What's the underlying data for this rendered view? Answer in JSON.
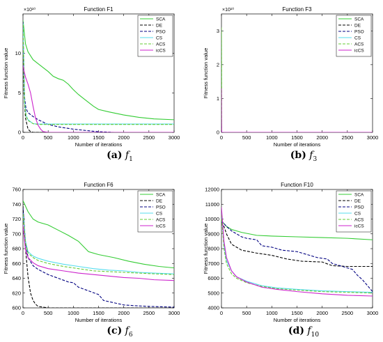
{
  "panels": [
    {
      "caption_tag": "(a)",
      "caption_symbol": "f",
      "caption_index": "1"
    },
    {
      "caption_tag": "(b)",
      "caption_symbol": "f",
      "caption_index": "3"
    },
    {
      "caption_tag": "(c)",
      "caption_symbol": "f",
      "caption_index": "6"
    },
    {
      "caption_tag": "(d)",
      "caption_symbol": "f",
      "caption_index": "10"
    }
  ],
  "legend_colors": {
    "SCA": "#33cc33",
    "DE": "#000000",
    "PSO": "#000080",
    "CS": "#55ddee",
    "ACS": "#66cc33",
    "icCS": "#cc22cc"
  },
  "chart_data": [
    {
      "type": "line",
      "title": "Function F1",
      "xlabel": "Number of iterations",
      "ylabel": "Fitness function value",
      "xlim": [
        0,
        3000
      ],
      "ylim": [
        0,
        15
      ],
      "y_multiplier_label": "×10¹⁰",
      "xticks": [
        0,
        500,
        1000,
        1500,
        2000,
        2500,
        3000
      ],
      "yticks": [
        0,
        5,
        10
      ],
      "legend_position": "top-right",
      "series": [
        {
          "name": "SCA",
          "x": [
            0,
            50,
            100,
            200,
            300,
            400,
            500,
            600,
            700,
            800,
            900,
            1000,
            1100,
            1200,
            1300,
            1400,
            1500,
            1700,
            2000,
            2300,
            2600,
            3000
          ],
          "y": [
            14.2,
            11.2,
            10.2,
            9.2,
            8.7,
            8.2,
            7.7,
            7.1,
            6.8,
            6.6,
            6.1,
            5.4,
            4.8,
            4.3,
            3.8,
            3.3,
            2.9,
            2.6,
            2.2,
            1.9,
            1.7,
            1.6
          ]
        },
        {
          "name": "DE",
          "x": [
            0,
            20,
            50,
            100,
            150,
            200,
            300,
            3000
          ],
          "y": [
            13.5,
            5.0,
            1.8,
            0.4,
            0.1,
            0,
            0,
            0
          ]
        },
        {
          "name": "PSO",
          "x": [
            0,
            30,
            60,
            100,
            200,
            300,
            400,
            500,
            700,
            1000,
            1300,
            1500,
            1800,
            3000
          ],
          "y": [
            14.0,
            4.5,
            3.0,
            2.5,
            2.0,
            1.6,
            1.3,
            1.0,
            0.7,
            0.4,
            0.2,
            0.08,
            0,
            0
          ]
        },
        {
          "name": "CS",
          "x": [
            0,
            30,
            60,
            100,
            200,
            300,
            3000
          ],
          "y": [
            13.8,
            4.0,
            2.2,
            1.6,
            1.1,
            1.05,
            1.05
          ]
        },
        {
          "name": "ACS",
          "x": [
            0,
            30,
            60,
            100,
            200,
            300,
            3000
          ],
          "y": [
            13.6,
            3.8,
            2.1,
            1.5,
            1.1,
            1.0,
            1.0
          ]
        },
        {
          "name": "icCS",
          "x": [
            0,
            20,
            50,
            100,
            150,
            200,
            250,
            300,
            350,
            400,
            500,
            3000
          ],
          "y": [
            8.5,
            7.8,
            7.0,
            6.1,
            5.0,
            3.3,
            1.8,
            0.9,
            0.4,
            0.1,
            0,
            0
          ]
        }
      ]
    },
    {
      "type": "line",
      "title": "Function F3",
      "xlabel": "Number of iterations",
      "ylabel": "Fitness function value",
      "xlim": [
        0,
        3000
      ],
      "ylim": [
        0,
        3.5
      ],
      "y_multiplier_label": "×10¹⁰",
      "xticks": [
        0,
        500,
        1000,
        1500,
        2000,
        2500,
        3000
      ],
      "yticks": [
        0,
        1,
        2,
        3
      ],
      "legend_position": "top-right",
      "series": [
        {
          "name": "SCA",
          "x": [
            0,
            2,
            5,
            3000
          ],
          "y": [
            3.0,
            0.5,
            0,
            0
          ]
        },
        {
          "name": "DE",
          "x": [
            0,
            2,
            3000
          ],
          "y": [
            0.3,
            0,
            0
          ]
        },
        {
          "name": "PSO",
          "x": [
            0,
            2,
            3000
          ],
          "y": [
            0.2,
            0,
            0
          ]
        },
        {
          "name": "CS",
          "x": [
            0,
            2,
            3000
          ],
          "y": [
            0.1,
            0,
            0
          ]
        },
        {
          "name": "ACS",
          "x": [
            0,
            3,
            6,
            3000
          ],
          "y": [
            3.1,
            2.0,
            0,
            0
          ]
        },
        {
          "name": "icCS",
          "x": [
            0,
            2,
            4,
            3000
          ],
          "y": [
            1.3,
            0.3,
            0,
            0
          ]
        }
      ]
    },
    {
      "type": "line",
      "title": "Function F6",
      "xlabel": "Number of iterations",
      "ylabel": "Fitness function value",
      "xlim": [
        0,
        3000
      ],
      "ylim": [
        600,
        760
      ],
      "xticks": [
        0,
        500,
        1000,
        1500,
        2000,
        2500,
        3000
      ],
      "yticks": [
        600,
        620,
        640,
        660,
        680,
        700,
        720,
        740,
        760
      ],
      "legend_position": "top-right",
      "series": [
        {
          "name": "SCA",
          "x": [
            0,
            100,
            200,
            300,
            500,
            700,
            900,
            1100,
            1300,
            1500,
            1800,
            2100,
            2400,
            2700,
            3000
          ],
          "y": [
            745,
            730,
            720,
            716,
            712,
            705,
            698,
            690,
            676,
            672,
            668,
            663,
            659,
            656,
            654
          ]
        },
        {
          "name": "DE",
          "x": [
            0,
            50,
            100,
            150,
            200,
            250,
            300,
            400,
            500,
            3000
          ],
          "y": [
            738,
            680,
            642,
            620,
            610,
            605,
            602,
            601,
            600,
            600
          ]
        },
        {
          "name": "PSO",
          "x": [
            0,
            50,
            100,
            200,
            300,
            500,
            700,
            900,
            1000,
            1100,
            1300,
            1500,
            1600,
            1800,
            2000,
            2200,
            2500,
            3000
          ],
          "y": [
            735,
            690,
            668,
            657,
            652,
            645,
            640,
            635,
            634,
            628,
            623,
            618,
            610,
            607,
            604,
            603,
            602,
            601
          ]
        },
        {
          "name": "CS",
          "x": [
            0,
            50,
            100,
            200,
            300,
            500,
            800,
            1100,
            1400,
            1700,
            2000,
            2300,
            2600,
            3000
          ],
          "y": [
            728,
            690,
            676,
            670,
            667,
            663,
            659,
            656,
            653,
            651,
            650,
            648,
            647,
            646
          ]
        },
        {
          "name": "ACS",
          "x": [
            0,
            50,
            100,
            200,
            300,
            500,
            800,
            1100,
            1400,
            1700,
            2000,
            2300,
            2600,
            3000
          ],
          "y": [
            727,
            688,
            674,
            668,
            664,
            660,
            656,
            653,
            650,
            649,
            648,
            647,
            646,
            645
          ]
        },
        {
          "name": "icCS",
          "x": [
            0,
            50,
            100,
            200,
            300,
            500,
            800,
            1100,
            1400,
            1700,
            2000,
            2300,
            2600,
            3000
          ],
          "y": [
            712,
            678,
            668,
            661,
            657,
            653,
            650,
            647,
            645,
            643,
            641,
            640,
            638,
            637
          ]
        }
      ]
    },
    {
      "type": "line",
      "title": "Function F10",
      "xlabel": "Number of iterations",
      "ylabel": "Fitness function value",
      "xlim": [
        0,
        3000
      ],
      "ylim": [
        4000,
        12000
      ],
      "xticks": [
        0,
        500,
        1000,
        1500,
        2000,
        2500,
        3000
      ],
      "yticks": [
        4000,
        5000,
        6000,
        7000,
        8000,
        9000,
        10000,
        11000,
        12000
      ],
      "legend_position": "top-right",
      "series": [
        {
          "name": "SCA",
          "x": [
            0,
            50,
            100,
            200,
            400,
            700,
            1000,
            1500,
            2000,
            2500,
            3000
          ],
          "y": [
            9800,
            9700,
            9500,
            9300,
            9100,
            8900,
            8850,
            8800,
            8750,
            8700,
            8600
          ]
        },
        {
          "name": "DE",
          "x": [
            0,
            50,
            100,
            200,
            400,
            700,
            1000,
            1300,
            1600,
            2000,
            2200,
            2500,
            3000
          ],
          "y": [
            9800,
            9500,
            9000,
            8300,
            7900,
            7700,
            7550,
            7300,
            7150,
            7100,
            6850,
            6800,
            6800
          ]
        },
        {
          "name": "PSO",
          "x": [
            0,
            50,
            100,
            200,
            300,
            400,
            500,
            700,
            800,
            1000,
            1200,
            1500,
            1700,
            1900,
            2100,
            2200,
            2400,
            2600,
            2700,
            2800,
            2900,
            3000
          ],
          "y": [
            9900,
            9700,
            9500,
            9200,
            9000,
            8800,
            8700,
            8600,
            8200,
            8100,
            7900,
            7800,
            7600,
            7400,
            7300,
            7000,
            6800,
            6600,
            6200,
            5900,
            5500,
            5100
          ]
        },
        {
          "name": "CS",
          "x": [
            0,
            50,
            100,
            200,
            300,
            500,
            800,
            1100,
            1500,
            2000,
            2500,
            3000
          ],
          "y": [
            10500,
            8200,
            7200,
            6500,
            6100,
            5800,
            5500,
            5350,
            5250,
            5150,
            5100,
            5050
          ]
        },
        {
          "name": "ACS",
          "x": [
            0,
            50,
            100,
            200,
            300,
            500,
            800,
            1100,
            1500,
            2000,
            2500,
            3000
          ],
          "y": [
            10300,
            8000,
            7000,
            6300,
            6000,
            5700,
            5450,
            5300,
            5200,
            5100,
            5050,
            5000
          ]
        },
        {
          "name": "icCS",
          "x": [
            0,
            50,
            100,
            200,
            300,
            500,
            800,
            1100,
            1500,
            2000,
            2500,
            3000
          ],
          "y": [
            10800,
            8500,
            7400,
            6500,
            6100,
            5750,
            5400,
            5250,
            5100,
            4950,
            4850,
            4800
          ]
        }
      ]
    }
  ]
}
